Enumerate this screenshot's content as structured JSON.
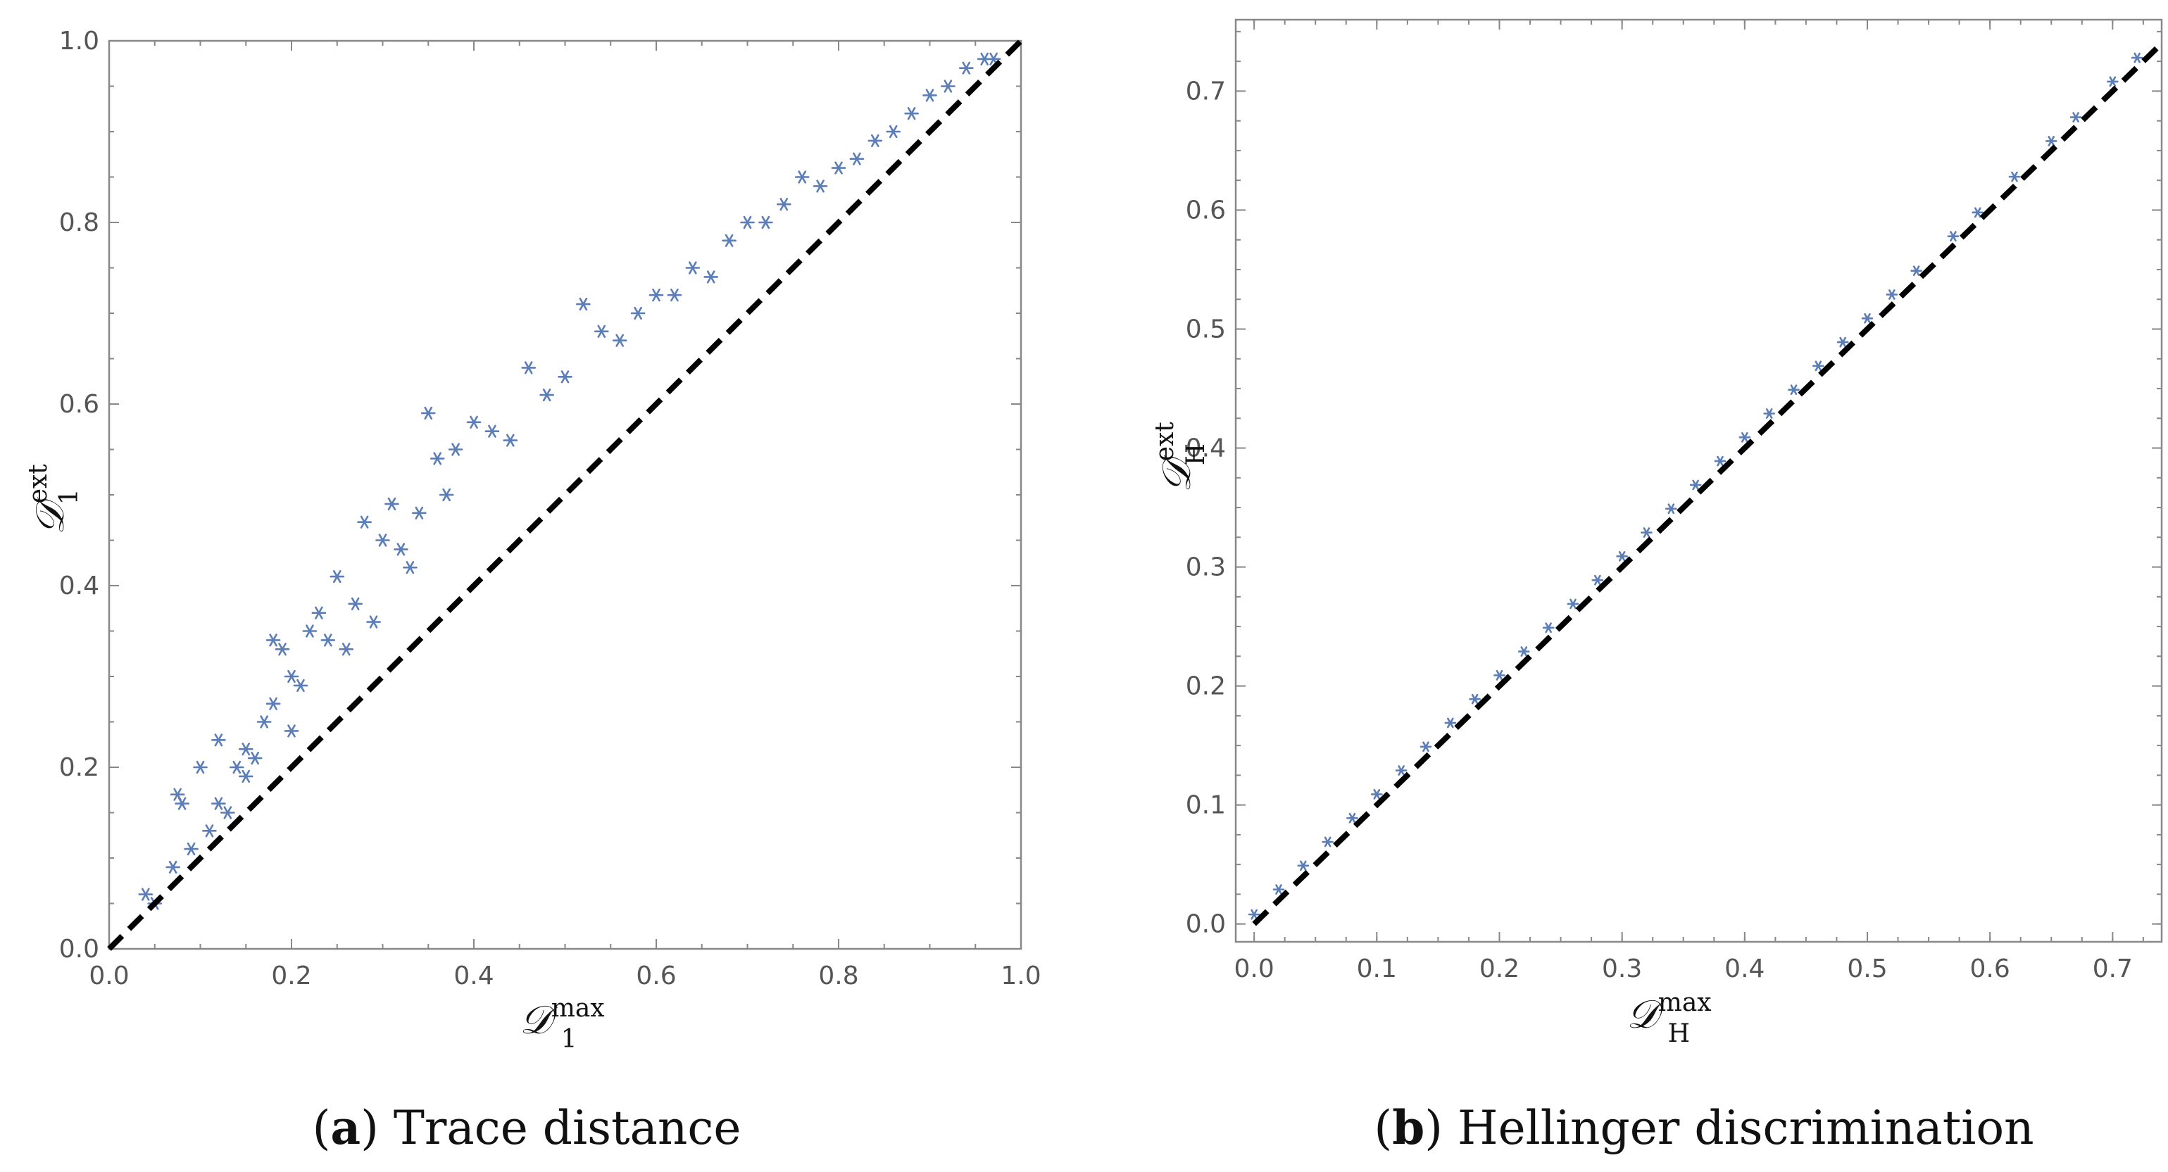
{
  "colors": {
    "marker": "#5B7DB8",
    "diagonal": "#000000",
    "frame": "#888888"
  },
  "chart_data": [
    {
      "type": "scatter",
      "marker": "asterisk",
      "xlabel": "D_1^max",
      "ylabel": "D_1^ext",
      "xlabel_parts": {
        "main": "𝒟",
        "sup": "max",
        "sub": "1"
      },
      "ylabel_parts": {
        "main": "𝒟",
        "sup": "ext",
        "sub": "1"
      },
      "xlim": [
        0,
        1
      ],
      "ylim": [
        0,
        1
      ],
      "xticks": [
        0.0,
        0.2,
        0.4,
        0.6,
        0.8,
        1.0
      ],
      "yticks": [
        0.0,
        0.2,
        0.4,
        0.6,
        0.8,
        1.0
      ],
      "xtick_labels": [
        "0.0",
        "0.2",
        "0.4",
        "0.6",
        "0.8",
        "1.0"
      ],
      "ytick_labels": [
        "0.0",
        "0.2",
        "0.4",
        "0.6",
        "0.8",
        "1.0"
      ],
      "reference_line": {
        "type": "y=x",
        "style": "dashed",
        "from": [
          0,
          0
        ],
        "to": [
          1,
          1
        ]
      },
      "caption_letter": "a",
      "caption_text": "Trace distance",
      "series": [
        {
          "name": "samples",
          "x": [
            0.04,
            0.05,
            0.07,
            0.08,
            0.075,
            0.09,
            0.1,
            0.11,
            0.12,
            0.12,
            0.13,
            0.14,
            0.15,
            0.15,
            0.16,
            0.17,
            0.18,
            0.18,
            0.19,
            0.2,
            0.2,
            0.21,
            0.22,
            0.23,
            0.24,
            0.25,
            0.26,
            0.27,
            0.28,
            0.29,
            0.3,
            0.31,
            0.32,
            0.33,
            0.34,
            0.35,
            0.36,
            0.37,
            0.38,
            0.4,
            0.42,
            0.44,
            0.46,
            0.48,
            0.5,
            0.52,
            0.54,
            0.56,
            0.58,
            0.6,
            0.62,
            0.64,
            0.66,
            0.68,
            0.7,
            0.72,
            0.74,
            0.76,
            0.78,
            0.8,
            0.82,
            0.84,
            0.86,
            0.88,
            0.9,
            0.92,
            0.94,
            0.96,
            0.97
          ],
          "y": [
            0.06,
            0.05,
            0.09,
            0.16,
            0.17,
            0.11,
            0.2,
            0.13,
            0.23,
            0.16,
            0.15,
            0.2,
            0.22,
            0.19,
            0.21,
            0.25,
            0.34,
            0.27,
            0.33,
            0.3,
            0.24,
            0.29,
            0.35,
            0.37,
            0.34,
            0.41,
            0.33,
            0.38,
            0.47,
            0.36,
            0.45,
            0.49,
            0.44,
            0.42,
            0.48,
            0.59,
            0.54,
            0.5,
            0.55,
            0.58,
            0.57,
            0.56,
            0.64,
            0.61,
            0.63,
            0.71,
            0.68,
            0.67,
            0.7,
            0.72,
            0.72,
            0.75,
            0.74,
            0.78,
            0.8,
            0.8,
            0.82,
            0.85,
            0.84,
            0.86,
            0.87,
            0.89,
            0.9,
            0.92,
            0.94,
            0.95,
            0.97,
            0.98,
            0.98
          ]
        }
      ]
    },
    {
      "type": "scatter",
      "marker": "asterisk",
      "xlabel": "D_H^max",
      "ylabel": "D_H^ext",
      "xlabel_parts": {
        "main": "𝒟",
        "sup": "max",
        "sub": "H"
      },
      "ylabel_parts": {
        "main": "𝒟",
        "sup": "ext",
        "sub": "H"
      },
      "xlim": [
        -0.015,
        0.74
      ],
      "ylim": [
        -0.015,
        0.76
      ],
      "xticks": [
        0.0,
        0.1,
        0.2,
        0.3,
        0.4,
        0.5,
        0.6,
        0.7
      ],
      "yticks": [
        0.0,
        0.1,
        0.2,
        0.3,
        0.4,
        0.5,
        0.6,
        0.7
      ],
      "xtick_labels": [
        "0.0",
        "0.1",
        "0.2",
        "0.3",
        "0.4",
        "0.5",
        "0.6",
        "0.7"
      ],
      "ytick_labels": [
        "0.0",
        "0.1",
        "0.2",
        "0.3",
        "0.4",
        "0.5",
        "0.6",
        "0.7"
      ],
      "reference_line": {
        "type": "y=x",
        "style": "dashed",
        "from": [
          0,
          0
        ],
        "to": [
          0.74,
          0.74
        ]
      },
      "caption_letter": "b",
      "caption_text": "Hellinger discrimination",
      "series": [
        {
          "name": "samples",
          "x": [
            0.0,
            0.02,
            0.04,
            0.06,
            0.08,
            0.1,
            0.12,
            0.14,
            0.16,
            0.18,
            0.2,
            0.22,
            0.24,
            0.26,
            0.28,
            0.3,
            0.32,
            0.34,
            0.36,
            0.38,
            0.4,
            0.42,
            0.44,
            0.46,
            0.48,
            0.5,
            0.52,
            0.54,
            0.57,
            0.59,
            0.62,
            0.65,
            0.67,
            0.7,
            0.72
          ],
          "y": [
            0.008,
            0.029,
            0.049,
            0.069,
            0.089,
            0.109,
            0.129,
            0.149,
            0.169,
            0.189,
            0.209,
            0.229,
            0.249,
            0.269,
            0.289,
            0.309,
            0.329,
            0.349,
            0.369,
            0.389,
            0.409,
            0.429,
            0.449,
            0.469,
            0.489,
            0.509,
            0.529,
            0.549,
            0.578,
            0.598,
            0.628,
            0.658,
            0.678,
            0.708,
            0.728
          ]
        }
      ]
    }
  ]
}
